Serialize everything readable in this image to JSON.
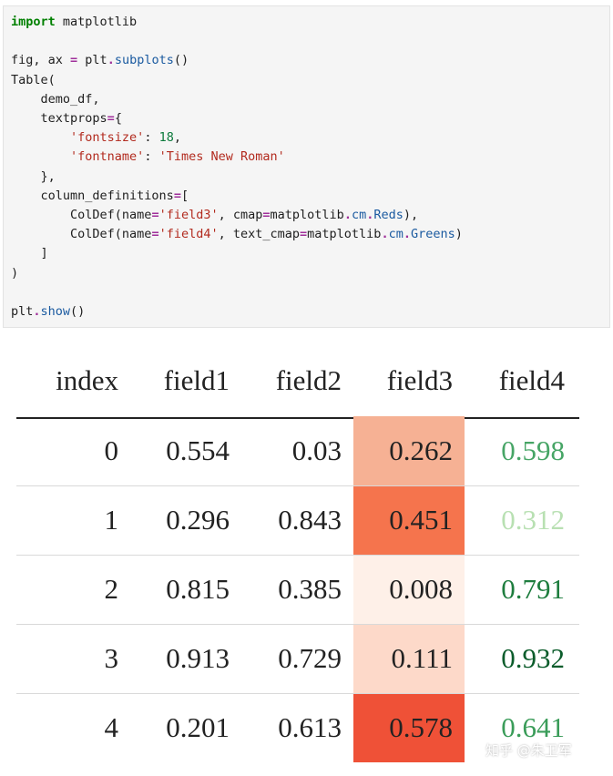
{
  "code_cell": {
    "lines": [
      [
        {
          "t": "import",
          "c": "kw"
        },
        {
          "t": " matplotlib",
          "c": "plain"
        }
      ],
      [],
      [
        {
          "t": "fig, ax ",
          "c": "plain"
        },
        {
          "t": "=",
          "c": "op"
        },
        {
          "t": " plt",
          "c": "plain"
        },
        {
          "t": ".",
          "c": "op"
        },
        {
          "t": "subplots",
          "c": "attr"
        },
        {
          "t": "()",
          "c": "plain"
        }
      ],
      [
        {
          "t": "Table(",
          "c": "plain"
        }
      ],
      [
        {
          "t": "    demo_df,",
          "c": "plain"
        }
      ],
      [
        {
          "t": "    textprops",
          "c": "plain"
        },
        {
          "t": "=",
          "c": "op"
        },
        {
          "t": "{",
          "c": "plain"
        }
      ],
      [
        {
          "t": "        ",
          "c": "plain"
        },
        {
          "t": "'fontsize'",
          "c": "str"
        },
        {
          "t": ": ",
          "c": "plain"
        },
        {
          "t": "18",
          "c": "num"
        },
        {
          "t": ",",
          "c": "plain"
        }
      ],
      [
        {
          "t": "        ",
          "c": "plain"
        },
        {
          "t": "'fontname'",
          "c": "str"
        },
        {
          "t": ": ",
          "c": "plain"
        },
        {
          "t": "'Times New Roman'",
          "c": "str"
        }
      ],
      [
        {
          "t": "    },",
          "c": "plain"
        }
      ],
      [
        {
          "t": "    column_definitions",
          "c": "plain"
        },
        {
          "t": "=",
          "c": "op"
        },
        {
          "t": "[",
          "c": "plain"
        }
      ],
      [
        {
          "t": "        ColDef(name",
          "c": "plain"
        },
        {
          "t": "=",
          "c": "op"
        },
        {
          "t": "'field3'",
          "c": "str"
        },
        {
          "t": ", cmap",
          "c": "plain"
        },
        {
          "t": "=",
          "c": "op"
        },
        {
          "t": "matplotlib",
          "c": "plain"
        },
        {
          "t": ".",
          "c": "op"
        },
        {
          "t": "cm",
          "c": "attr"
        },
        {
          "t": ".",
          "c": "op"
        },
        {
          "t": "Reds",
          "c": "attr"
        },
        {
          "t": "),",
          "c": "plain"
        }
      ],
      [
        {
          "t": "        ColDef(name",
          "c": "plain"
        },
        {
          "t": "=",
          "c": "op"
        },
        {
          "t": "'field4'",
          "c": "str"
        },
        {
          "t": ", text_cmap",
          "c": "plain"
        },
        {
          "t": "=",
          "c": "op"
        },
        {
          "t": "matplotlib",
          "c": "plain"
        },
        {
          "t": ".",
          "c": "op"
        },
        {
          "t": "cm",
          "c": "attr"
        },
        {
          "t": ".",
          "c": "op"
        },
        {
          "t": "Greens",
          "c": "attr"
        },
        {
          "t": ")",
          "c": "plain"
        }
      ],
      [
        {
          "t": "    ]",
          "c": "plain"
        }
      ],
      [
        {
          "t": ")",
          "c": "plain"
        }
      ],
      [],
      [
        {
          "t": "plt",
          "c": "plain"
        },
        {
          "t": ".",
          "c": "op"
        },
        {
          "t": "show",
          "c": "attr"
        },
        {
          "t": "()",
          "c": "plain"
        }
      ]
    ]
  },
  "table": {
    "columns": [
      "index",
      "field1",
      "field2",
      "field3",
      "field4"
    ],
    "rows": [
      {
        "index": "0",
        "field1": "0.554",
        "field2": "0.03",
        "field3": "0.262",
        "field4": "0.598"
      },
      {
        "index": "1",
        "field1": "0.296",
        "field2": "0.843",
        "field3": "0.451",
        "field4": "0.312"
      },
      {
        "index": "2",
        "field1": "0.815",
        "field2": "0.385",
        "field3": "0.008",
        "field4": "0.791"
      },
      {
        "index": "3",
        "field1": "0.913",
        "field2": "0.729",
        "field3": "0.111",
        "field4": "0.932"
      },
      {
        "index": "4",
        "field1": "0.201",
        "field2": "0.613",
        "field3": "0.578",
        "field4": "0.641"
      }
    ],
    "field3_cell_colors": [
      "#f6b194",
      "#f5744d",
      "#fef0e8",
      "#fdd9c9",
      "#ef5137"
    ],
    "field4_text_colors": [
      "#47a566",
      "#b8e0b2",
      "#1e7d3e",
      "#0b5c2b",
      "#3a9c59"
    ]
  },
  "watermark": {
    "text": "知乎 @朱卫军"
  }
}
